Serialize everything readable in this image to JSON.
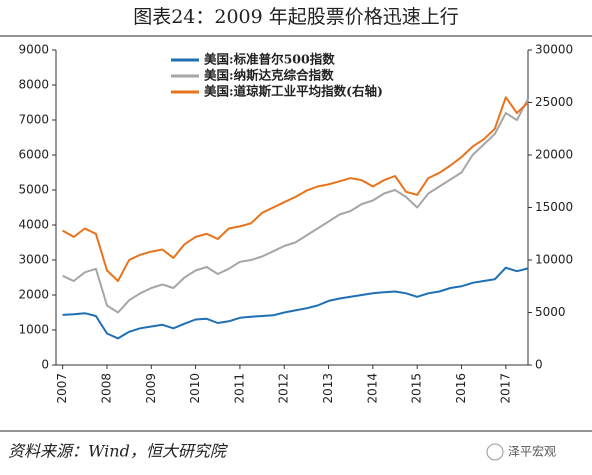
{
  "chart_data": {
    "type": "line",
    "title": "图表24：2009 年起股票价格迅速上行",
    "source": "资料来源：Wind，恒大研究院",
    "watermark": "泽平宏观",
    "x": [
      2007,
      2007.25,
      2007.5,
      2007.75,
      2008,
      2008.25,
      2008.5,
      2008.75,
      2009,
      2009.25,
      2009.5,
      2009.75,
      2010,
      2010.25,
      2010.5,
      2010.75,
      2011,
      2011.25,
      2011.5,
      2011.75,
      2012,
      2012.25,
      2012.5,
      2012.75,
      2013,
      2013.25,
      2013.5,
      2013.75,
      2014,
      2014.25,
      2014.5,
      2014.75,
      2015,
      2015.25,
      2015.5,
      2015.75,
      2016,
      2016.25,
      2016.5,
      2016.75,
      2017,
      2017.25,
      2017.5
    ],
    "series": [
      {
        "name": "美国:标准普尔500指数",
        "color": "#1f6fb5",
        "values": [
          1430,
          1450,
          1480,
          1400,
          900,
          760,
          950,
          1050,
          1100,
          1150,
          1050,
          1180,
          1300,
          1320,
          1200,
          1250,
          1350,
          1380,
          1400,
          1420,
          1500,
          1560,
          1620,
          1700,
          1830,
          1900,
          1950,
          2000,
          2050,
          2080,
          2100,
          2050,
          1950,
          2050,
          2100,
          2200,
          2250,
          2350,
          2400,
          2450,
          2780,
          2680,
          2760
        ]
      },
      {
        "name": "美国:纳斯达克综合指数",
        "color": "#a6a6a6",
        "values": [
          2550,
          2400,
          2650,
          2750,
          1700,
          1500,
          1850,
          2050,
          2200,
          2300,
          2200,
          2500,
          2700,
          2800,
          2600,
          2750,
          2950,
          3000,
          3100,
          3250,
          3400,
          3500,
          3700,
          3900,
          4100,
          4300,
          4400,
          4600,
          4700,
          4900,
          5000,
          4800,
          4500,
          4900,
          5100,
          5300,
          5500,
          6000,
          6300,
          6600,
          7200,
          7000,
          7600
        ]
      },
      {
        "name": "美国:道琼斯工业平均指数(右轴)",
        "color": "#e8731c",
        "axis": "y2",
        "values": [
          12800,
          12200,
          13000,
          12500,
          9000,
          8000,
          10000,
          10500,
          10800,
          11000,
          10200,
          11500,
          12200,
          12500,
          12000,
          13000,
          13200,
          13500,
          14500,
          15000,
          15500,
          16000,
          16600,
          17000,
          17200,
          17500,
          17800,
          17600,
          17000,
          17600,
          18000,
          16500,
          16200,
          17800,
          18300,
          19000,
          19800,
          20800,
          21500,
          22500,
          25500,
          24000,
          25000
        ]
      }
    ],
    "xlim": [
      2006.85,
      2017.5
    ],
    "xticks": [
      2007,
      2008,
      2009,
      2010,
      2011,
      2012,
      2013,
      2014,
      2015,
      2016,
      2017
    ],
    "ylim": [
      0,
      9000
    ],
    "yticks": [
      0,
      1000,
      2000,
      3000,
      4000,
      5000,
      6000,
      7000,
      8000,
      9000
    ],
    "y2lim": [
      0,
      30000
    ],
    "y2ticks": [
      0,
      5000,
      10000,
      15000,
      20000,
      25000,
      30000
    ],
    "grid": false,
    "legend": "upper left"
  }
}
